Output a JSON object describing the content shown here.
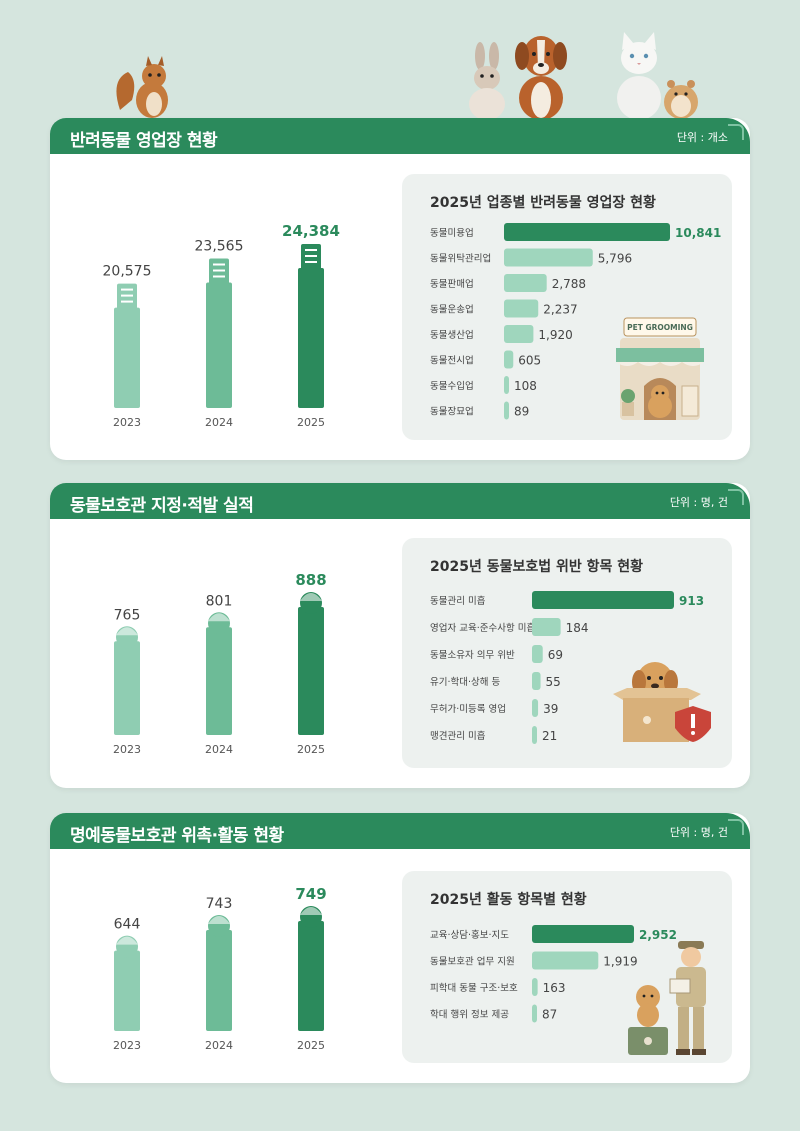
{
  "colors": {
    "background": "#d5e5de",
    "header": "#2b8a5c",
    "bar_light": "#8fcdb2",
    "bar_mid": "#6dbb97",
    "bar_dark": "#2b8a5c",
    "hbar_light": "#9fd6bd"
  },
  "sections": [
    {
      "title": "반려동물 영업장 현황",
      "unit": "단위 : 개소",
      "icon": "building-icon",
      "card_title": "2025년 업종별 반려동물 영업장 현황",
      "illustration": "pet-grooming-shop-illustration",
      "shop_sign": "PET GROOMING"
    },
    {
      "title": "동물보호관 지정·적발 실적",
      "unit": "단위 : 명, 건",
      "icon": "officer-icon",
      "card_title": "2025년 동물보호법 위반 항목 현황",
      "illustration": "puppy-in-box-illustration"
    },
    {
      "title": "명예동물보호관 위촉·활동 현황",
      "unit": "단위 : 명, 건",
      "icon": "officer-icon",
      "card_title": "2025년 활동 항목별 현황",
      "illustration": "officer-with-puppy-illustration"
    }
  ],
  "chart_data": [
    {
      "type": "bar",
      "categories": [
        "2023",
        "2024",
        "2025"
      ],
      "values": [
        20575,
        23565,
        24384
      ],
      "labels": [
        "20,575",
        "23,565",
        "24,384"
      ],
      "highlight_index": 2
    },
    {
      "type": "bar",
      "orientation": "horizontal",
      "categories": [
        "동물미용업",
        "동물위탁관리업",
        "동물판매업",
        "동물운송업",
        "동물생산업",
        "동물전시업",
        "동물수입업",
        "동물장묘업"
      ],
      "values": [
        10841,
        5796,
        2788,
        2237,
        1920,
        605,
        108,
        89
      ],
      "labels": [
        "10,841",
        "5,796",
        "2,788",
        "2,237",
        "1,920",
        "605",
        "108",
        "89"
      ],
      "highlight_index": 0
    },
    {
      "type": "bar",
      "categories": [
        "2023",
        "2024",
        "2025"
      ],
      "values": [
        765,
        801,
        888
      ],
      "labels": [
        "765",
        "801",
        "888"
      ],
      "highlight_index": 2
    },
    {
      "type": "bar",
      "orientation": "horizontal",
      "categories": [
        "동물관리 미흡",
        "영업자 교육·준수사항 미흡",
        "동물소유자 의무 위반",
        "유기·학대·상해 등",
        "무허가·미등록 영업",
        "맹견관리 미흡"
      ],
      "values": [
        913,
        184,
        69,
        55,
        39,
        21
      ],
      "labels": [
        "913",
        "184",
        "69",
        "55",
        "39",
        "21"
      ],
      "highlight_index": 0
    },
    {
      "type": "bar",
      "categories": [
        "2023",
        "2024",
        "2025"
      ],
      "values": [
        644,
        743,
        749
      ],
      "labels": [
        "644",
        "743",
        "749"
      ],
      "highlight_index": 2
    },
    {
      "type": "bar",
      "orientation": "horizontal",
      "categories": [
        "교육·상담·홍보·지도",
        "동물보호관 업무 지원",
        "피학대 동물 구조·보호",
        "학대 행위 정보 제공"
      ],
      "values": [
        2952,
        1919,
        163,
        87
      ],
      "labels": [
        "2,952",
        "1,919",
        "163",
        "87"
      ],
      "highlight_index": 0
    }
  ]
}
